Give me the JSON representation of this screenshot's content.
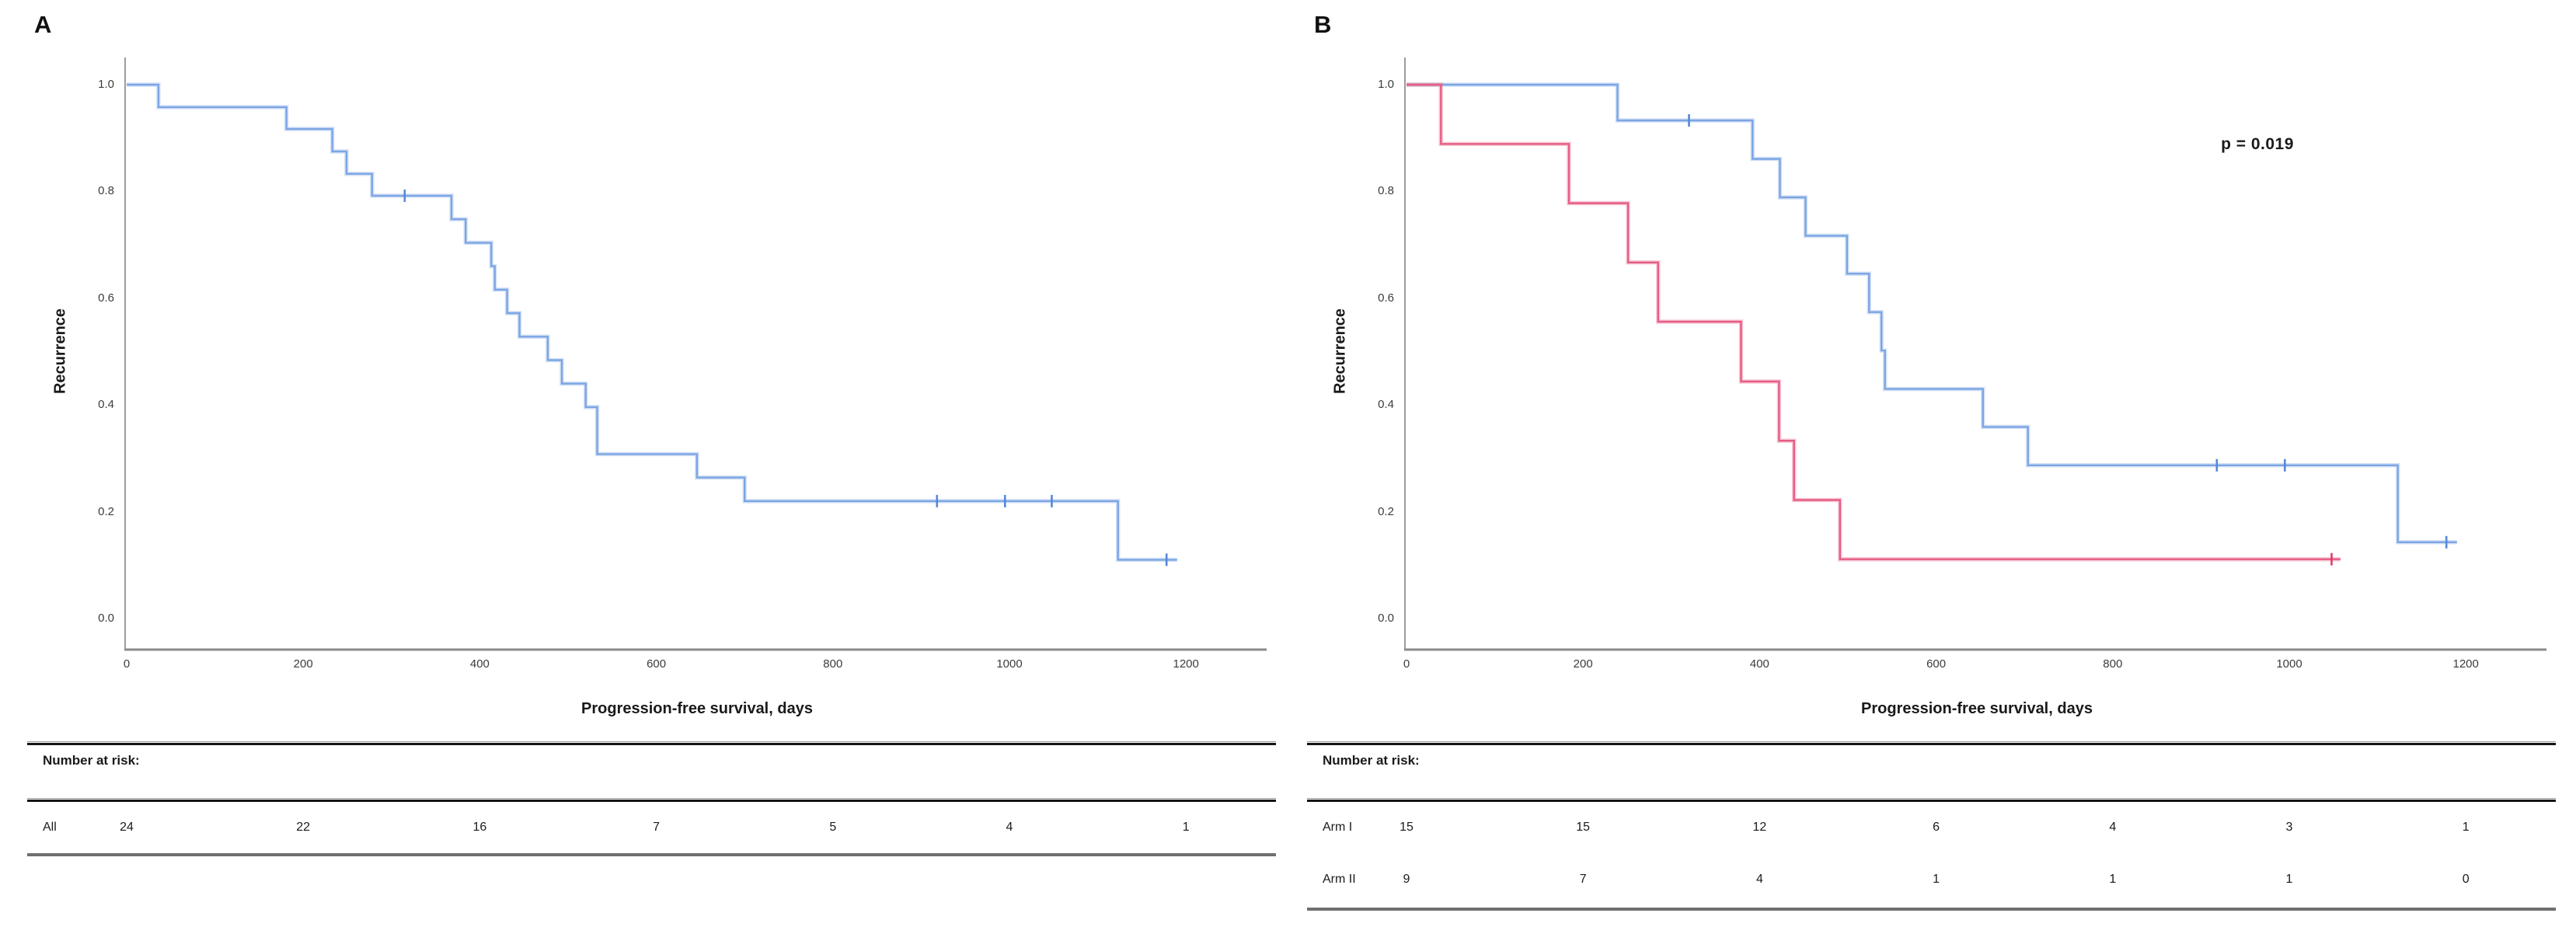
{
  "style": {
    "background": "#ffffff",
    "axis_color": "#8a8a8a",
    "tick_text_color": "#3c3c3c",
    "text_color": "#1a1a1a",
    "blue": "#7ba5e3",
    "blue_censor": "#5688d6",
    "red": "#e65c84",
    "red_censor": "#dd3f68"
  },
  "chart_data": [
    {
      "type": "km_step",
      "panel_label": "A",
      "title": "",
      "annotation": "",
      "ylabel": "Recurrence",
      "xlabel": "Progression-free survival, days",
      "yticks": [
        "1.0",
        "0.8",
        "0.6",
        "0.4",
        "0.2",
        "0.0"
      ],
      "xticks": [
        "0",
        "200",
        "400",
        "600",
        "800",
        "1000",
        "1200"
      ],
      "xlim": [
        0,
        1292
      ],
      "ylim": [
        0.0,
        1.0
      ],
      "grid": false,
      "legend": "none",
      "series": [
        {
          "name": "All",
          "color": "#7ba5e3",
          "censor_color": "#5688d6",
          "steps": [
            [
              0,
              1.0
            ],
            [
              36,
              0.958
            ],
            [
              181,
              0.917
            ],
            [
              233,
              0.875
            ],
            [
              249,
              0.833
            ],
            [
              278,
              0.792
            ],
            [
              368,
              0.748
            ],
            [
              384,
              0.704
            ],
            [
              413,
              0.66
            ],
            [
              417,
              0.616
            ],
            [
              431,
              0.572
            ],
            [
              445,
              0.528
            ],
            [
              477,
              0.484
            ],
            [
              493,
              0.44
            ],
            [
              520,
              0.396
            ],
            [
              533,
              0.308
            ],
            [
              646,
              0.264
            ],
            [
              700,
              0.22
            ],
            [
              1123,
              0.11
            ]
          ],
          "censors": [
            [
              315,
              0.792
            ],
            [
              918,
              0.22
            ],
            [
              995,
              0.22
            ],
            [
              1048,
              0.22
            ],
            [
              1178,
              0.11
            ]
          ],
          "end_day": 1190
        }
      ],
      "risk_table": {
        "header": "Number at risk:",
        "rows": [
          {
            "label": "All",
            "values": [
              "24",
              "22",
              "16",
              "7",
              "5",
              "4",
              "1"
            ]
          }
        ]
      }
    },
    {
      "type": "km_step",
      "panel_label": "B",
      "title": "",
      "annotation": "p = 0.019",
      "ylabel": "Recurrence",
      "xlabel": "Progression-free survival, days",
      "yticks": [
        "1.0",
        "0.8",
        "0.6",
        "0.4",
        "0.2",
        "0.0"
      ],
      "xticks": [
        "0",
        "200",
        "400",
        "600",
        "800",
        "1000",
        "1200"
      ],
      "xlim": [
        0,
        1292
      ],
      "ylim": [
        0.0,
        1.0
      ],
      "grid": false,
      "legend": "none",
      "series": [
        {
          "name": "Arm I",
          "color": "#7ba5e3",
          "censor_color": "#5688d6",
          "steps": [
            [
              0,
              1.0
            ],
            [
              239,
              0.933
            ],
            [
              392,
              0.861
            ],
            [
              423,
              0.789
            ],
            [
              452,
              0.717
            ],
            [
              499,
              0.646
            ],
            [
              524,
              0.574
            ],
            [
              538,
              0.502
            ],
            [
              542,
              0.43
            ],
            [
              653,
              0.359
            ],
            [
              704,
              0.287
            ],
            [
              1123,
              0.143
            ]
          ],
          "censors": [
            [
              320,
              0.933
            ],
            [
              918,
              0.287
            ],
            [
              995,
              0.287
            ],
            [
              1178,
              0.143
            ]
          ],
          "end_day": 1190
        },
        {
          "name": "Arm II",
          "color": "#e65c84",
          "censor_color": "#dd3f68",
          "steps": [
            [
              0,
              1.0
            ],
            [
              39,
              0.889
            ],
            [
              184,
              0.778
            ],
            [
              251,
              0.667
            ],
            [
              285,
              0.556
            ],
            [
              379,
              0.444
            ],
            [
              422,
              0.333
            ],
            [
              439,
              0.222
            ],
            [
              491,
              0.111
            ]
          ],
          "censors": [
            [
              1048,
              0.111
            ]
          ],
          "end_day": 1058
        }
      ],
      "risk_table": {
        "header": "Number at risk:",
        "rows": [
          {
            "label": "Arm I",
            "values": [
              "15",
              "15",
              "12",
              "6",
              "4",
              "3",
              "1"
            ]
          },
          {
            "label": "Arm II",
            "values": [
              "9",
              "7",
              "4",
              "1",
              "1",
              "1",
              "0"
            ]
          }
        ]
      }
    }
  ]
}
